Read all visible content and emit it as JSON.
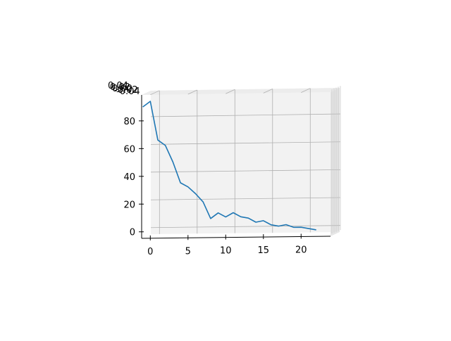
{
  "chart_data": {
    "type": "line",
    "projection": "3d",
    "title": "",
    "xlabel": "",
    "ylabel": "",
    "zlabel": "",
    "grid": true,
    "xlim": [
      -1.15,
      23.9
    ],
    "ylim": [
      -4.7,
      98.7
    ],
    "x_ticks": [
      0,
      5,
      10,
      15,
      20
    ],
    "y_ticks": [
      0,
      20,
      40,
      60,
      80
    ],
    "depth_ticks": [
      "0.04",
      "0.02",
      "0.00",
      "-0.02",
      "-0.04"
    ],
    "series": [
      {
        "color": "#1f77b4",
        "x": [
          -1,
          0,
          1,
          2,
          3,
          4,
          5,
          6,
          7,
          8,
          9,
          10,
          11,
          12,
          13,
          14,
          15,
          16,
          17,
          18,
          19,
          20,
          21,
          22
        ],
        "y": [
          90,
          94,
          66,
          62,
          50,
          35,
          32,
          27,
          21,
          9,
          13,
          10,
          13,
          10,
          9,
          6,
          7,
          4,
          3,
          4,
          2,
          2,
          1,
          0
        ]
      }
    ]
  }
}
